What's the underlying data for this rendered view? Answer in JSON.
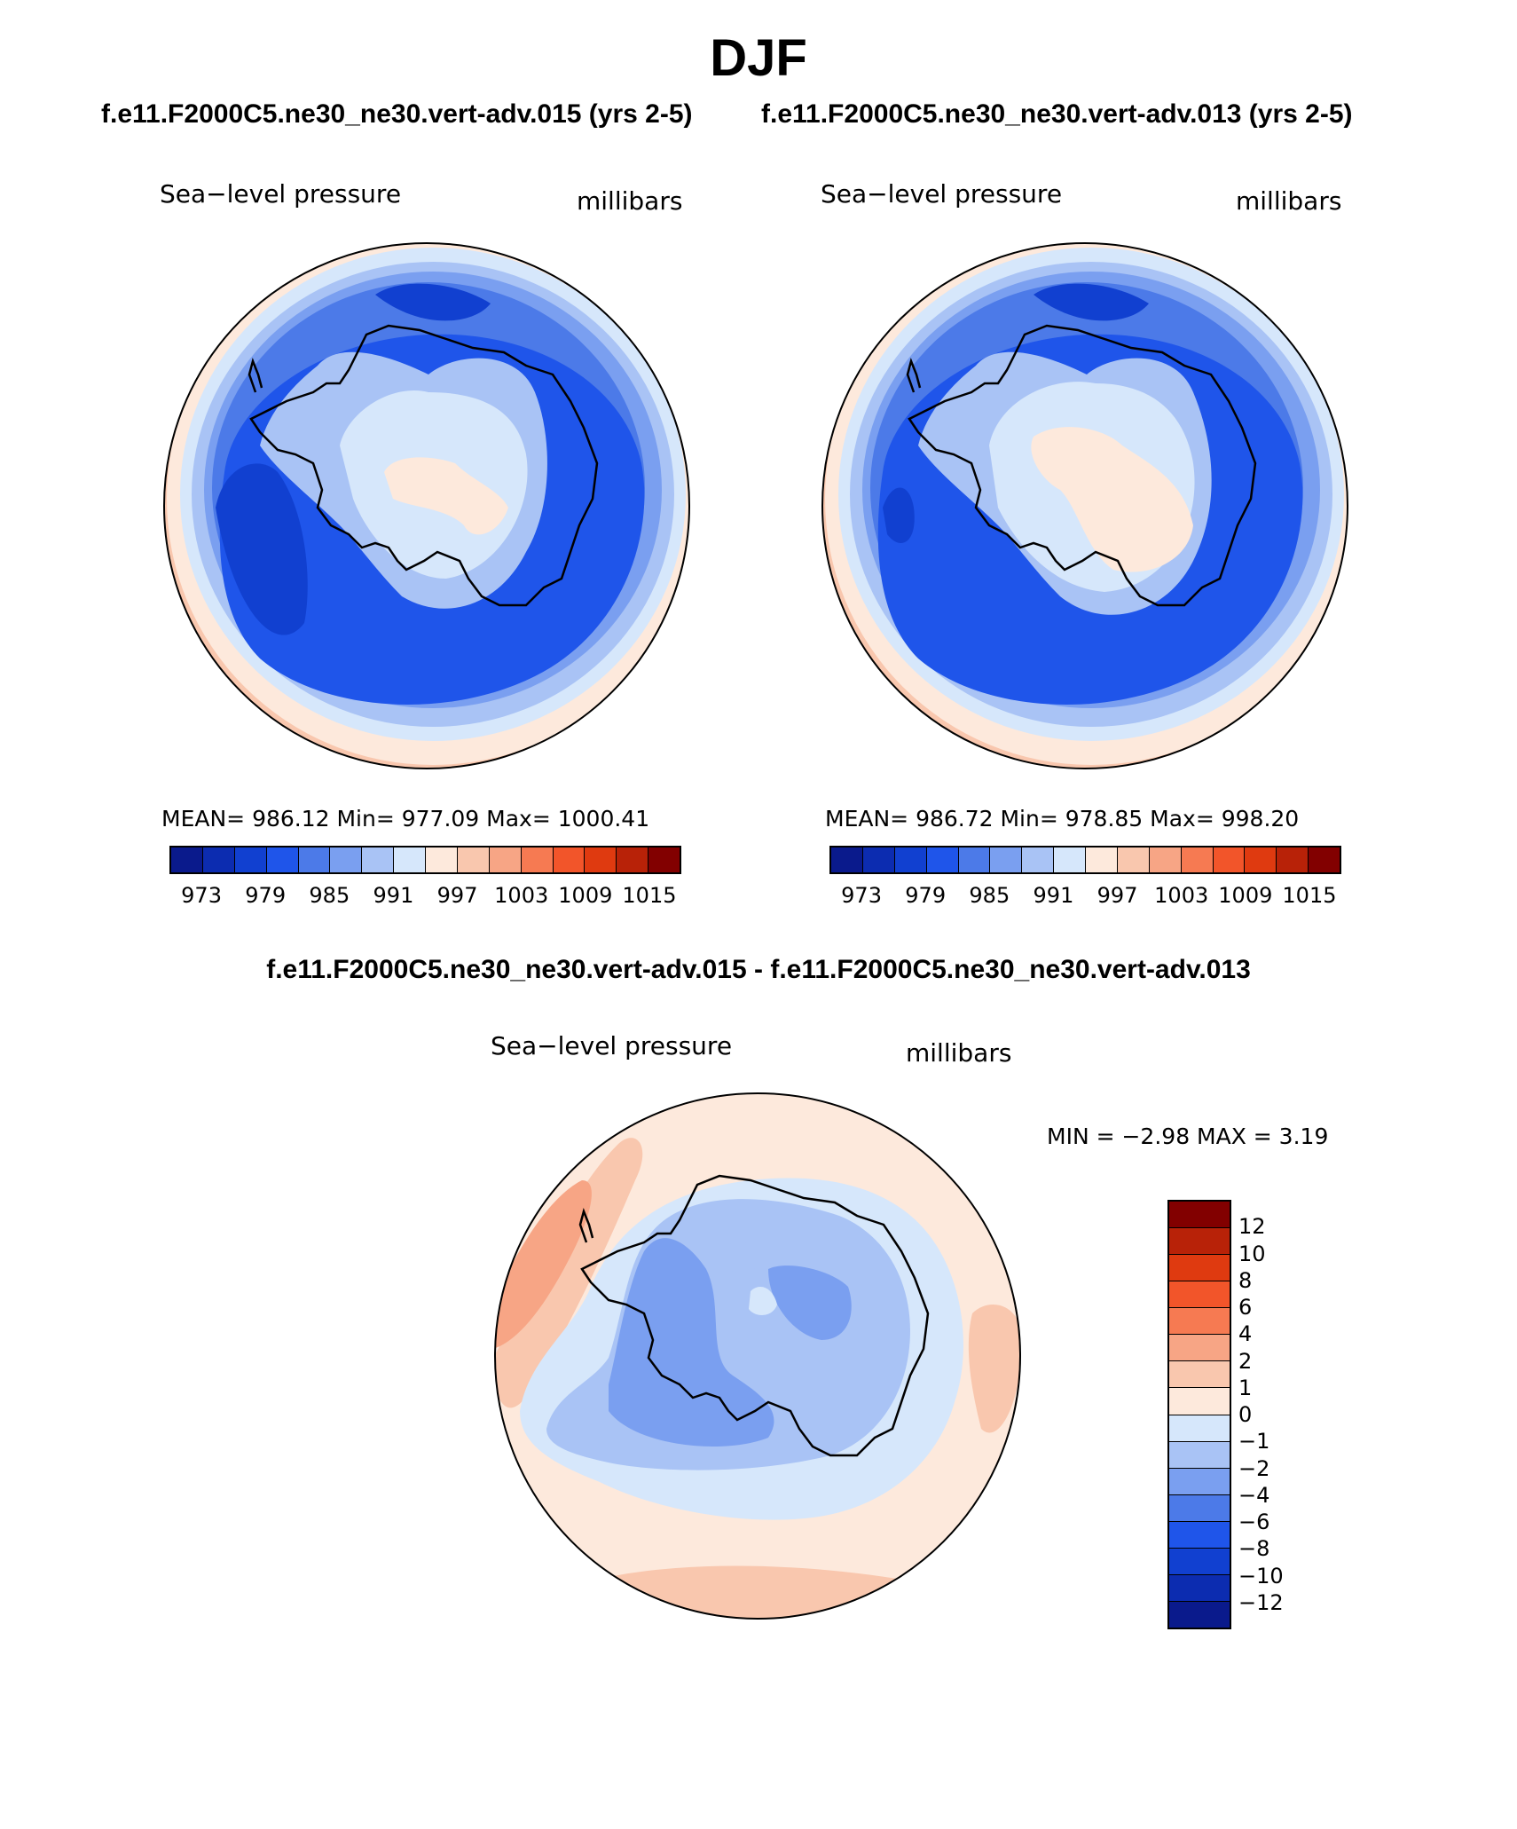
{
  "title": "DJF",
  "cases": {
    "left": "f.e11.F2000C5.ne30_ne30.vert-adv.015 (yrs 2-5)",
    "right": "f.e11.F2000C5.ne30_ne30.vert-adv.013 (yrs 2-5)",
    "diff": "f.e11.F2000C5.ne30_ne30.vert-adv.015 - f.e11.F2000C5.ne30_ne30.vert-adv.013"
  },
  "panels": [
    {
      "variable": "Sea−level pressure",
      "units": "millibars",
      "stats": "MEAN= 986.12   Min= 977.09   Max= 1000.41",
      "mean": 986.12,
      "min": 977.09,
      "max": 1000.41
    },
    {
      "variable": "Sea−level pressure",
      "units": "millibars",
      "stats": "MEAN= 986.72   Min= 978.85   Max= 998.20",
      "mean": 986.72,
      "min": 978.85,
      "max": 998.2
    }
  ],
  "diff_panel": {
    "variable": "Sea−level pressure",
    "units": "millibars",
    "stats": "MIN =   −2.98  MAX =     3.19",
    "min": -2.98,
    "max": 3.19
  },
  "colorbar_main": {
    "colors": [
      "#0a1a8c",
      "#0c2cb0",
      "#1140d0",
      "#1f55ea",
      "#4c7ae8",
      "#7a9ff0",
      "#a9c3f5",
      "#d6e7fb",
      "#fde9dc",
      "#f9c7ae",
      "#f7a585",
      "#f67a52",
      "#f2552a",
      "#df3a10",
      "#b82208",
      "#820000"
    ],
    "ticks": [
      "973",
      "979",
      "985",
      "991",
      "997",
      "1003",
      "1009",
      "1015"
    ]
  },
  "colorbar_diff": {
    "colors": [
      "#820000",
      "#b82208",
      "#df3a10",
      "#f2552a",
      "#f67a52",
      "#f7a585",
      "#f9c7ae",
      "#fde9dc",
      "#d6e7fb",
      "#a9c3f5",
      "#7a9ff0",
      "#4c7ae8",
      "#1f55ea",
      "#1140d0",
      "#0c2cb0",
      "#0a1a8c"
    ],
    "ticks": [
      "12",
      "10",
      "8",
      "6",
      "4",
      "2",
      "1",
      "0",
      "−1",
      "−2",
      "−4",
      "−6",
      "−8",
      "−10",
      "−12"
    ]
  }
}
